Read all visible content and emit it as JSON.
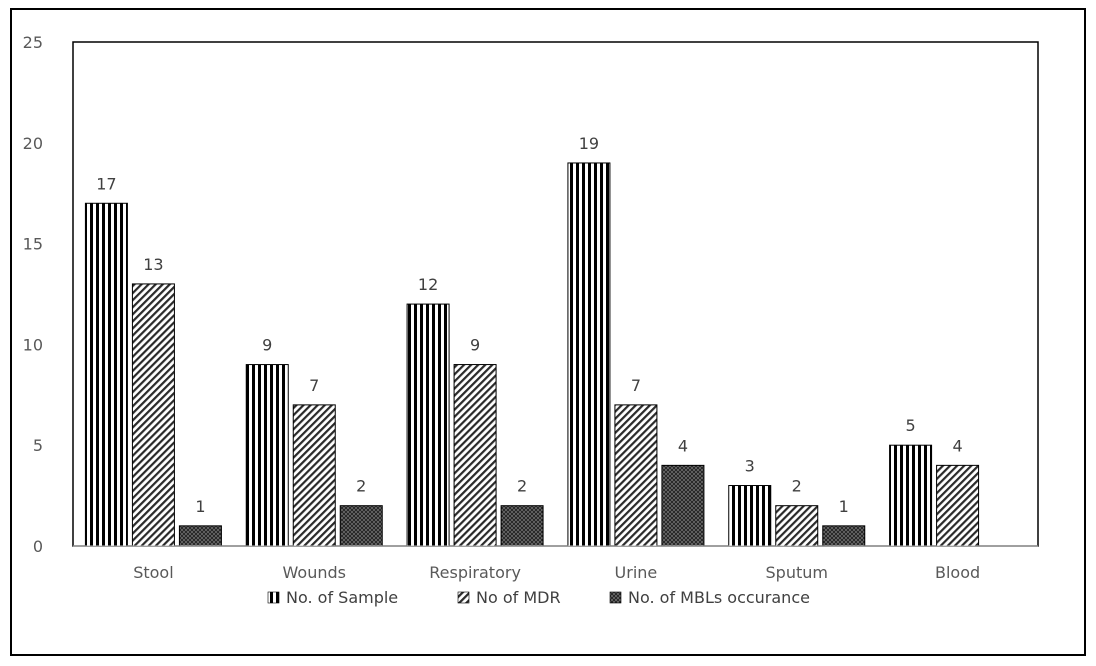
{
  "chart_data": {
    "type": "bar",
    "categories": [
      "Stool",
      "Wounds",
      "Respiratory",
      "Urine",
      "Sputum",
      "Blood"
    ],
    "series": [
      {
        "name": "No. of Sample",
        "values": [
          17,
          9,
          12,
          19,
          3,
          5
        ],
        "pattern": "vertical-stripes"
      },
      {
        "name": "No of MDR",
        "values": [
          13,
          7,
          9,
          7,
          2,
          4
        ],
        "pattern": "diagonal-hatch"
      },
      {
        "name": "No. of MBLs occurance",
        "values": [
          1,
          2,
          2,
          4,
          1,
          null
        ],
        "pattern": "dense-crosshatch"
      }
    ],
    "ylim": [
      0,
      25
    ],
    "yticks": [
      0,
      5,
      10,
      15,
      20,
      25
    ],
    "grid": false,
    "legend_position": "bottom-center",
    "colors": {
      "stroke": "#000000",
      "axis": "#bfbfbf",
      "text": "#595959"
    }
  }
}
